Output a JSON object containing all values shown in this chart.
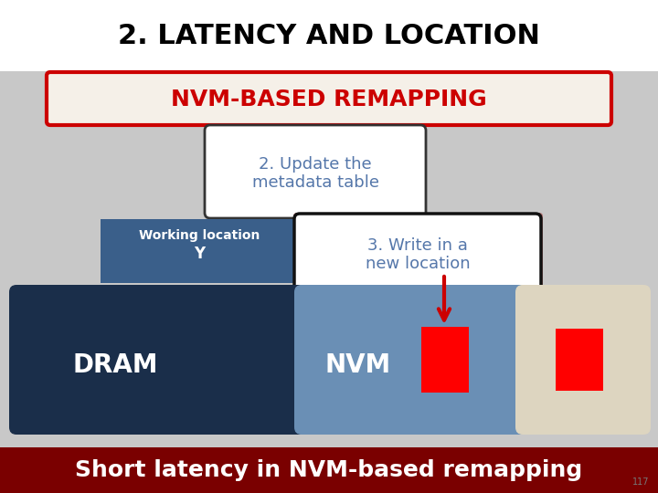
{
  "title": "2. LATENCY AND LOCATION",
  "title_fontsize": 22,
  "title_color": "#000000",
  "bg_color": "#c8c8c8",
  "title_bg": "#ffffff",
  "nvm_banner_text": "NVM-BASED REMAPPING",
  "nvm_banner_color": "#cc0000",
  "nvm_banner_bg": "#f5f0e8",
  "nvm_banner_border": "#cc0000",
  "update_box_text": "2. Update the\nmetadata table",
  "update_box_bg": "#ffffff",
  "update_box_border": "#333333",
  "update_text_color": "#5577aa",
  "working_loc_label": "Working location",
  "working_loc_val": "Y",
  "working_box_bg": "#3a5f8a",
  "working_box_text_color": "#ffffff",
  "write_box_text": "3. Write in a\nnew location",
  "write_box_bg": "#ffffff",
  "write_box_border": "#111111",
  "write_text_color": "#5577aa",
  "write_shadow_color": "#b07070",
  "dram_box_bg": "#1a2e4a",
  "dram_label": "DRAM",
  "nvm_box_bg": "#6a8fb5",
  "nvm_label": "NVM",
  "nvm_extra_bg": "#ddd5c0",
  "red_block_color": "#ff0000",
  "arrow_color": "#cc0000",
  "checkpoint_banner_text": "Short latency in NVM-based remapping",
  "checkpoint_banner_bg": "#7a0000",
  "checkpoint_banner_color": "#ffffff",
  "checkpoint_fontsize": 18,
  "page_num": "117"
}
